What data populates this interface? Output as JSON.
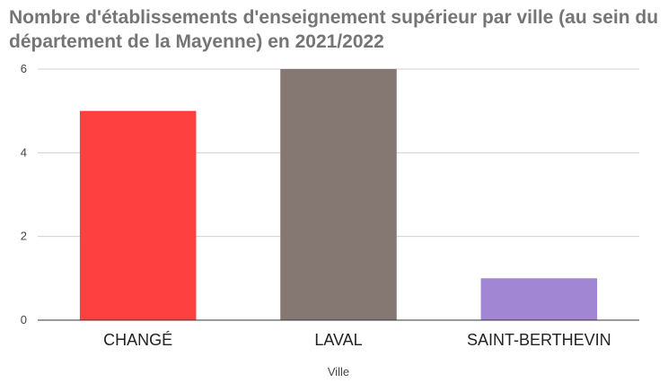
{
  "chart_data": {
    "type": "bar",
    "title": "Nombre d'établissements d'enseignement supérieur par ville (au sein du département de la Mayenne) en 2021/2022",
    "xlabel": "Ville",
    "ylabel": "",
    "categories": [
      "CHANGÉ",
      "LAVAL",
      "SAINT-BERTHEVIN"
    ],
    "values": [
      5,
      6,
      1
    ],
    "colors": [
      "#ff4040",
      "#857873",
      "#a086d3"
    ],
    "ylim": [
      0,
      6
    ],
    "yticks": [
      0,
      2,
      4,
      6
    ],
    "grid": true,
    "legend": "none"
  }
}
